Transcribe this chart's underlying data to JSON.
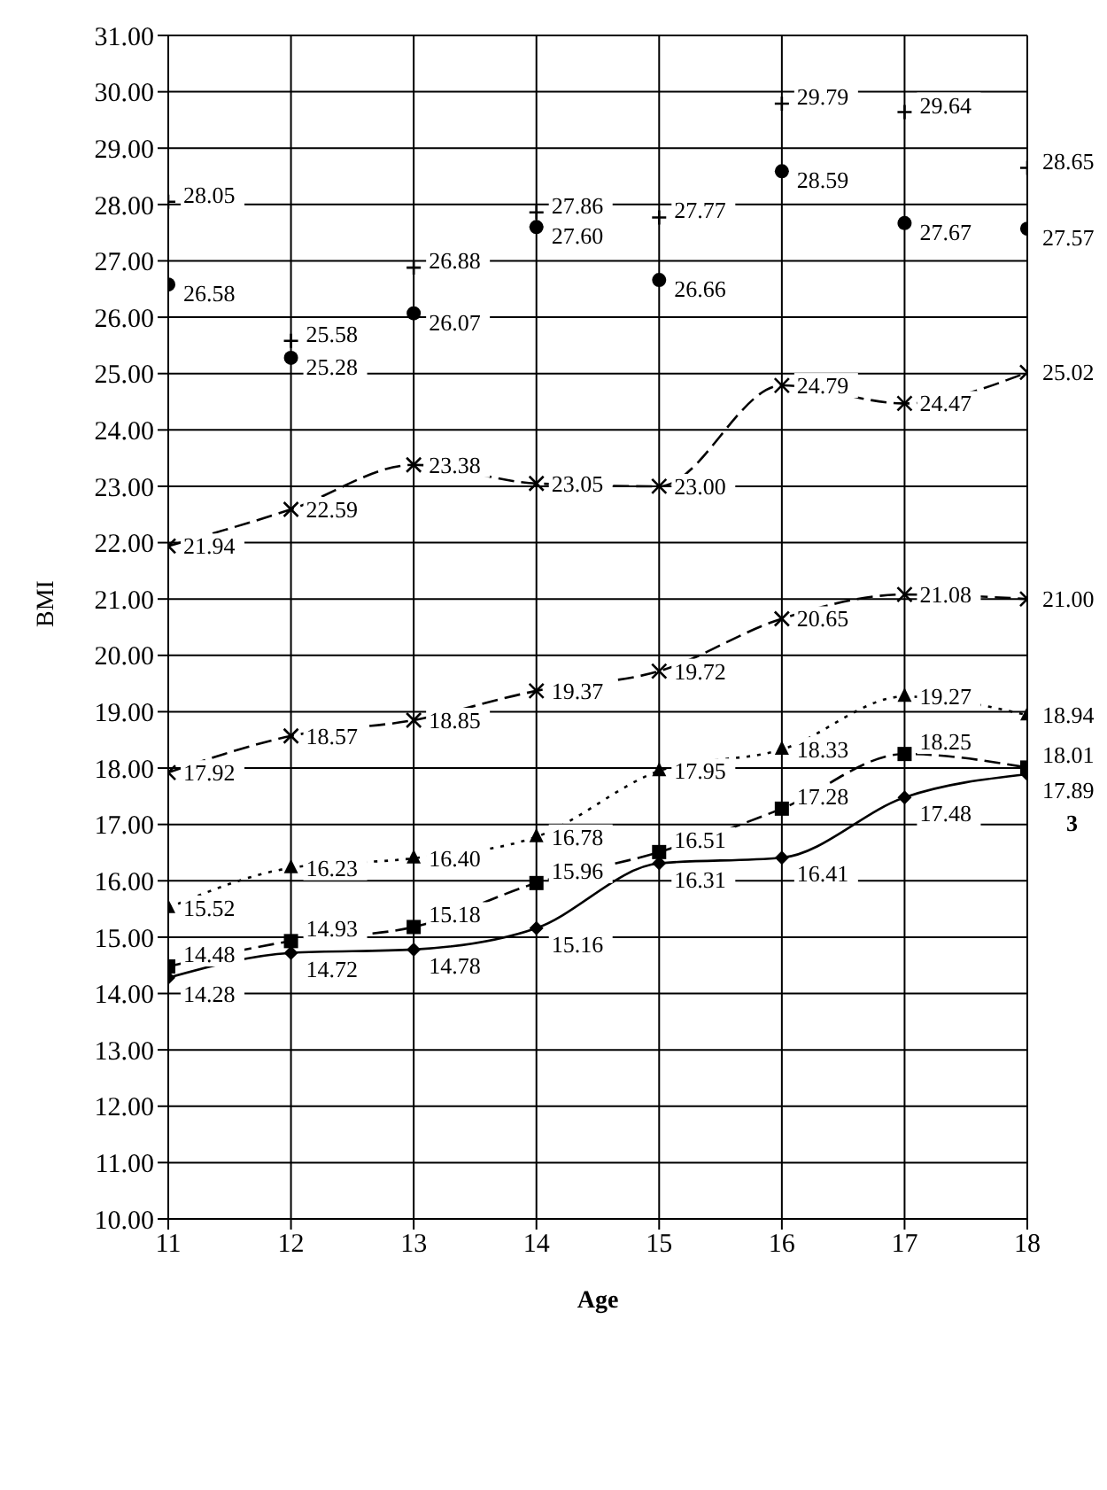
{
  "chart_data": {
    "type": "line",
    "xlabel": "Age",
    "ylabel": "BMI",
    "x": [
      11,
      12,
      13,
      14,
      15,
      16,
      17,
      18
    ],
    "series": [
      {
        "color": "#000000",
        "marker": "diamond",
        "line_style": "solid",
        "values": [
          14.28,
          14.72,
          14.78,
          15.16,
          16.31,
          16.41,
          17.48,
          17.89
        ],
        "value_labels": [
          "14.28",
          "14.72",
          "14.78",
          "15.16",
          "16.31",
          "16.41",
          "17.48",
          "17.89"
        ]
      },
      {
        "color": "#000000",
        "marker": "square",
        "line_style": "dashed",
        "values": [
          14.48,
          14.93,
          15.18,
          15.96,
          16.51,
          17.28,
          18.25,
          18.01
        ],
        "value_labels": [
          "14.48",
          "14.93",
          "15.18",
          "15.96",
          "16.51",
          "17.28",
          "18.25",
          "18.01"
        ]
      },
      {
        "color": "#000000",
        "marker": "triangle",
        "line_style": "dotted",
        "values": [
          15.52,
          16.23,
          16.4,
          16.78,
          17.95,
          18.33,
          19.27,
          18.94
        ],
        "value_labels": [
          "15.52",
          "16.23",
          "16.40",
          "16.78",
          "17.95",
          "18.33",
          "19.27",
          "18.94"
        ]
      },
      {
        "color": "#000000",
        "marker": "cross",
        "line_style": "dashed",
        "values": [
          17.92,
          18.57,
          18.85,
          19.37,
          19.72,
          20.65,
          21.08,
          21.0
        ],
        "value_labels": [
          "17.92",
          "18.57",
          "18.85",
          "19.37",
          "19.72",
          "20.65",
          "21.08",
          "21.00"
        ]
      },
      {
        "color": "#000000",
        "marker": "cross",
        "line_style": "dashed",
        "values": [
          21.94,
          22.59,
          23.38,
          23.05,
          23.0,
          24.79,
          24.47,
          25.02
        ],
        "value_labels": [
          "21.94",
          "22.59",
          "23.38",
          "23.05",
          "23.00",
          "24.79",
          "24.47",
          "25.02"
        ]
      },
      {
        "type": "scatter",
        "color": "#000000",
        "marker": "circle",
        "values": [
          26.58,
          25.28,
          26.07,
          27.6,
          26.66,
          28.59,
          27.67,
          27.57
        ],
        "value_labels": [
          "26.58",
          "25.28",
          "26.07",
          "27.60",
          "26.66",
          "28.59",
          "27.67",
          "27.57"
        ]
      },
      {
        "type": "scatter",
        "color": "#000000",
        "marker": "plus",
        "values": [
          28.05,
          25.58,
          26.88,
          27.86,
          27.77,
          29.79,
          29.64,
          28.65
        ],
        "value_labels": [
          "28.05",
          "25.58",
          "26.88",
          "27.86",
          "27.77",
          "29.79",
          "29.64",
          "28.65"
        ]
      }
    ],
    "xlim": [
      11,
      18
    ],
    "xticks": [
      11,
      12,
      13,
      14,
      15,
      16,
      17,
      18
    ],
    "ylim": [
      10,
      31
    ],
    "yticks": [
      {
        "value": 10,
        "label": "10.00"
      },
      {
        "value": 11,
        "label": "11.00"
      },
      {
        "value": 12,
        "label": "12.00"
      },
      {
        "value": 13,
        "label": "13.00"
      },
      {
        "value": 14,
        "label": "14.00"
      },
      {
        "value": 15,
        "label": "15.00"
      },
      {
        "value": 16,
        "label": "16.00"
      },
      {
        "value": 17,
        "label": "17.00"
      },
      {
        "value": 18,
        "label": "18.00"
      },
      {
        "value": 19,
        "label": "19.00"
      },
      {
        "value": 20,
        "label": "20.00"
      },
      {
        "value": 21,
        "label": "21.00"
      },
      {
        "value": 22,
        "label": "22.00"
      },
      {
        "value": 23,
        "label": "23.00"
      },
      {
        "value": 24,
        "label": "24.00"
      },
      {
        "value": 25,
        "label": "25.00"
      },
      {
        "value": 26,
        "label": "26.00"
      },
      {
        "value": 27,
        "label": "27.00"
      },
      {
        "value": 28,
        "label": "28.00"
      },
      {
        "value": 29,
        "label": "29.00"
      },
      {
        "value": 30,
        "label": "30.00"
      },
      {
        "value": 31,
        "label": "31.00"
      }
    ],
    "grid": true,
    "annotations": [
      {
        "text": "3",
        "x": 18,
        "y": 17.89
      }
    ]
  }
}
